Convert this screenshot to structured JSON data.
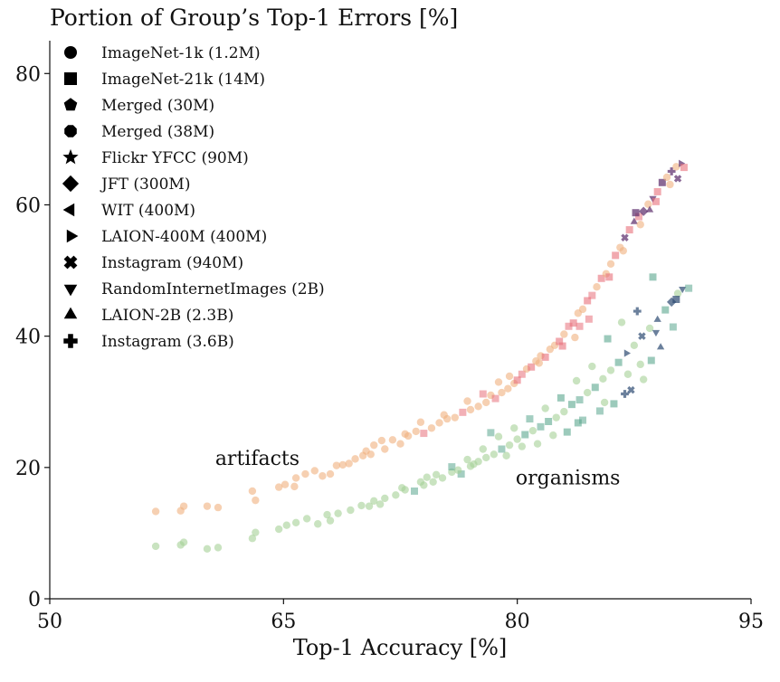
{
  "chart_data": {
    "type": "scatter",
    "title": "Portion of Group’s Top-1 Errors [%]",
    "xlabel": "Top-1 Accuracy [%]",
    "ylabel": "",
    "xlim": [
      50,
      95
    ],
    "ylim": [
      0,
      85
    ],
    "xticks": [
      50,
      65,
      80,
      95
    ],
    "yticks": [
      0,
      20,
      40,
      60,
      80
    ],
    "grid": false,
    "legend_position": "top-left",
    "legend": [
      {
        "label": "ImageNet-1k (1.2M)",
        "marker": "circle"
      },
      {
        "label": "ImageNet-21k (14M)",
        "marker": "square"
      },
      {
        "label": "Merged (30M)",
        "marker": "pentagon"
      },
      {
        "label": "Merged (38M)",
        "marker": "octagon"
      },
      {
        "label": "Flickr YFCC (90M)",
        "marker": "star"
      },
      {
        "label": "JFT (300M)",
        "marker": "diamond"
      },
      {
        "label": "WIT (400M)",
        "marker": "triangle-left"
      },
      {
        "label": "LAION-400M (400M)",
        "marker": "triangle-right"
      },
      {
        "label": "Instagram (940M)",
        "marker": "x-filled"
      },
      {
        "label": "RandomInternetImages (2B)",
        "marker": "triangle-down"
      },
      {
        "label": "LAION-2B (2.3B)",
        "marker": "triangle-up"
      },
      {
        "label": "Instagram (3.6B)",
        "marker": "plus-filled"
      }
    ],
    "annotations": [
      {
        "text": "artifacts",
        "x": 61,
        "y": 21.5
      },
      {
        "text": "organisms",
        "x": 80,
        "y": 18.5
      }
    ],
    "series": [
      {
        "name": "artifacts",
        "colors": {
          "low": "#f0b07f",
          "mid": "#e8707a",
          "high": "#5a2a6a"
        },
        "points": [
          [
            56.8,
            13.3
          ],
          [
            58.4,
            13.4
          ],
          [
            58.6,
            14.1
          ],
          [
            60.1,
            14.1
          ],
          [
            60.8,
            13.9
          ],
          [
            63.0,
            16.4
          ],
          [
            63.2,
            15.0
          ],
          [
            64.7,
            17.0
          ],
          [
            65.1,
            17.4
          ],
          [
            65.7,
            17.1
          ],
          [
            65.8,
            18.4
          ],
          [
            66.4,
            19.0
          ],
          [
            67.0,
            19.5
          ],
          [
            67.5,
            18.7
          ],
          [
            68.0,
            19.0
          ],
          [
            68.4,
            20.3
          ],
          [
            69.2,
            20.6
          ],
          [
            70.1,
            21.8
          ],
          [
            70.3,
            22.5
          ],
          [
            70.8,
            23.4
          ],
          [
            71.5,
            22.8
          ],
          [
            72.0,
            24.2
          ],
          [
            72.5,
            23.6
          ],
          [
            73.0,
            24.8
          ],
          [
            73.5,
            25.5
          ],
          [
            74.0,
            25.2
          ],
          [
            74.5,
            26.0
          ],
          [
            75.0,
            26.8
          ],
          [
            75.5,
            27.4
          ],
          [
            76.0,
            27.6
          ],
          [
            76.5,
            28.4
          ],
          [
            77.0,
            28.8
          ],
          [
            77.5,
            29.3
          ],
          [
            78.0,
            29.9
          ],
          [
            78.3,
            31.0
          ],
          [
            78.6,
            30.5
          ],
          [
            79.0,
            31.4
          ],
          [
            79.4,
            32.0
          ],
          [
            79.8,
            32.8
          ],
          [
            80.0,
            33.3
          ],
          [
            80.3,
            34.2
          ],
          [
            80.6,
            35.0
          ],
          [
            80.9,
            35.3
          ],
          [
            81.2,
            36.2
          ],
          [
            81.5,
            37.0
          ],
          [
            81.8,
            36.8
          ],
          [
            82.1,
            38.0
          ],
          [
            82.4,
            38.6
          ],
          [
            82.7,
            39.2
          ],
          [
            83.0,
            40.3
          ],
          [
            83.3,
            41.5
          ],
          [
            83.6,
            42.0
          ],
          [
            83.9,
            43.5
          ],
          [
            84.2,
            44.1
          ],
          [
            84.5,
            45.4
          ],
          [
            84.8,
            46.2
          ],
          [
            85.1,
            47.5
          ],
          [
            85.4,
            48.8
          ],
          [
            85.7,
            49.5
          ],
          [
            86.0,
            51.0
          ],
          [
            86.3,
            52.3
          ],
          [
            86.6,
            53.5
          ],
          [
            86.9,
            55.0
          ],
          [
            87.2,
            56.2
          ],
          [
            87.5,
            57.4
          ],
          [
            87.8,
            58.2
          ],
          [
            88.1,
            59.0
          ],
          [
            88.4,
            60.1
          ],
          [
            88.7,
            61.0
          ],
          [
            89.0,
            62.0
          ],
          [
            89.3,
            63.4
          ],
          [
            89.6,
            64.2
          ],
          [
            89.9,
            65.1
          ],
          [
            90.2,
            65.8
          ],
          [
            90.5,
            66.3
          ],
          [
            90.7,
            65.7
          ],
          [
            90.3,
            64.0
          ],
          [
            89.8,
            63.1
          ],
          [
            88.5,
            59.2
          ],
          [
            87.9,
            57.0
          ],
          [
            84.0,
            41.5
          ],
          [
            82.9,
            38.5
          ],
          [
            81.4,
            35.9
          ],
          [
            79.5,
            33.9
          ],
          [
            78.8,
            33.0
          ],
          [
            77.8,
            31.2
          ],
          [
            76.8,
            30.1
          ],
          [
            75.3,
            28.0
          ],
          [
            73.8,
            26.9
          ],
          [
            72.8,
            25.1
          ],
          [
            71.3,
            24.1
          ],
          [
            70.6,
            22.0
          ],
          [
            69.6,
            21.3
          ],
          [
            68.8,
            20.4
          ],
          [
            83.7,
            39.8
          ],
          [
            84.6,
            42.6
          ],
          [
            85.9,
            49.0
          ],
          [
            86.8,
            53.0
          ],
          [
            87.6,
            58.8
          ],
          [
            88.9,
            60.5
          ]
        ]
      },
      {
        "name": "organisms",
        "colors": {
          "low": "#a5d096",
          "mid": "#5aa68e",
          "high": "#2c4a72"
        },
        "points": [
          [
            56.8,
            8.0
          ],
          [
            58.4,
            8.2
          ],
          [
            58.6,
            8.6
          ],
          [
            60.1,
            7.6
          ],
          [
            60.8,
            7.8
          ],
          [
            63.0,
            9.2
          ],
          [
            63.2,
            10.1
          ],
          [
            64.7,
            10.6
          ],
          [
            65.2,
            11.2
          ],
          [
            65.8,
            11.6
          ],
          [
            66.5,
            12.2
          ],
          [
            67.2,
            11.4
          ],
          [
            67.8,
            12.8
          ],
          [
            68.5,
            13.0
          ],
          [
            69.3,
            13.5
          ],
          [
            70.0,
            14.2
          ],
          [
            70.8,
            14.9
          ],
          [
            71.5,
            15.3
          ],
          [
            72.2,
            15.8
          ],
          [
            72.8,
            16.6
          ],
          [
            73.4,
            16.4
          ],
          [
            74.0,
            17.3
          ],
          [
            74.6,
            17.8
          ],
          [
            75.2,
            18.4
          ],
          [
            75.8,
            19.3
          ],
          [
            76.4,
            19.0
          ],
          [
            77.0,
            20.2
          ],
          [
            77.5,
            20.9
          ],
          [
            78.0,
            21.5
          ],
          [
            78.5,
            22.0
          ],
          [
            79.0,
            22.8
          ],
          [
            79.5,
            23.4
          ],
          [
            80.0,
            24.3
          ],
          [
            80.5,
            25.0
          ],
          [
            81.0,
            25.6
          ],
          [
            81.5,
            26.2
          ],
          [
            82.0,
            27.0
          ],
          [
            82.5,
            27.6
          ],
          [
            83.0,
            28.5
          ],
          [
            83.5,
            29.6
          ],
          [
            84.0,
            30.3
          ],
          [
            84.5,
            31.4
          ],
          [
            85.0,
            32.2
          ],
          [
            85.5,
            33.5
          ],
          [
            86.0,
            34.8
          ],
          [
            86.5,
            36.0
          ],
          [
            87.0,
            37.4
          ],
          [
            87.5,
            38.6
          ],
          [
            88.0,
            40.0
          ],
          [
            88.5,
            41.2
          ],
          [
            89.0,
            42.5
          ],
          [
            89.5,
            44.0
          ],
          [
            89.9,
            45.2
          ],
          [
            90.3,
            46.5
          ],
          [
            90.6,
            47.2
          ],
          [
            91.0,
            47.3
          ],
          [
            90.2,
            45.6
          ],
          [
            88.7,
            49.0
          ],
          [
            87.7,
            43.8
          ],
          [
            86.7,
            42.1
          ],
          [
            85.8,
            39.6
          ],
          [
            84.8,
            35.4
          ],
          [
            83.8,
            33.2
          ],
          [
            82.8,
            30.6
          ],
          [
            81.8,
            29.0
          ],
          [
            80.8,
            27.4
          ],
          [
            79.8,
            26.0
          ],
          [
            78.8,
            24.7
          ],
          [
            77.8,
            22.8
          ],
          [
            76.8,
            21.2
          ],
          [
            75.8,
            20.1
          ],
          [
            74.8,
            18.9
          ],
          [
            73.8,
            17.8
          ],
          [
            72.6,
            16.9
          ],
          [
            71.2,
            14.4
          ],
          [
            86.2,
            29.7
          ],
          [
            87.3,
            31.8
          ],
          [
            88.1,
            33.4
          ],
          [
            89.2,
            38.3
          ],
          [
            87.9,
            35.7
          ],
          [
            85.3,
            28.6
          ],
          [
            83.2,
            25.4
          ],
          [
            81.3,
            23.6
          ],
          [
            79.3,
            21.8
          ],
          [
            77.2,
            20.5
          ],
          [
            84.2,
            27.2
          ],
          [
            86.9,
            31.2
          ],
          [
            88.6,
            36.3
          ],
          [
            82.3,
            24.9
          ],
          [
            80.3,
            23.2
          ],
          [
            78.3,
            25.3
          ],
          [
            76.2,
            19.6
          ],
          [
            74.2,
            18.5
          ],
          [
            70.5,
            14.1
          ],
          [
            68.0,
            11.9
          ],
          [
            90.0,
            41.4
          ],
          [
            88.9,
            40.6
          ],
          [
            87.1,
            34.2
          ],
          [
            85.6,
            29.9
          ],
          [
            83.9,
            26.8
          ]
        ]
      }
    ]
  }
}
